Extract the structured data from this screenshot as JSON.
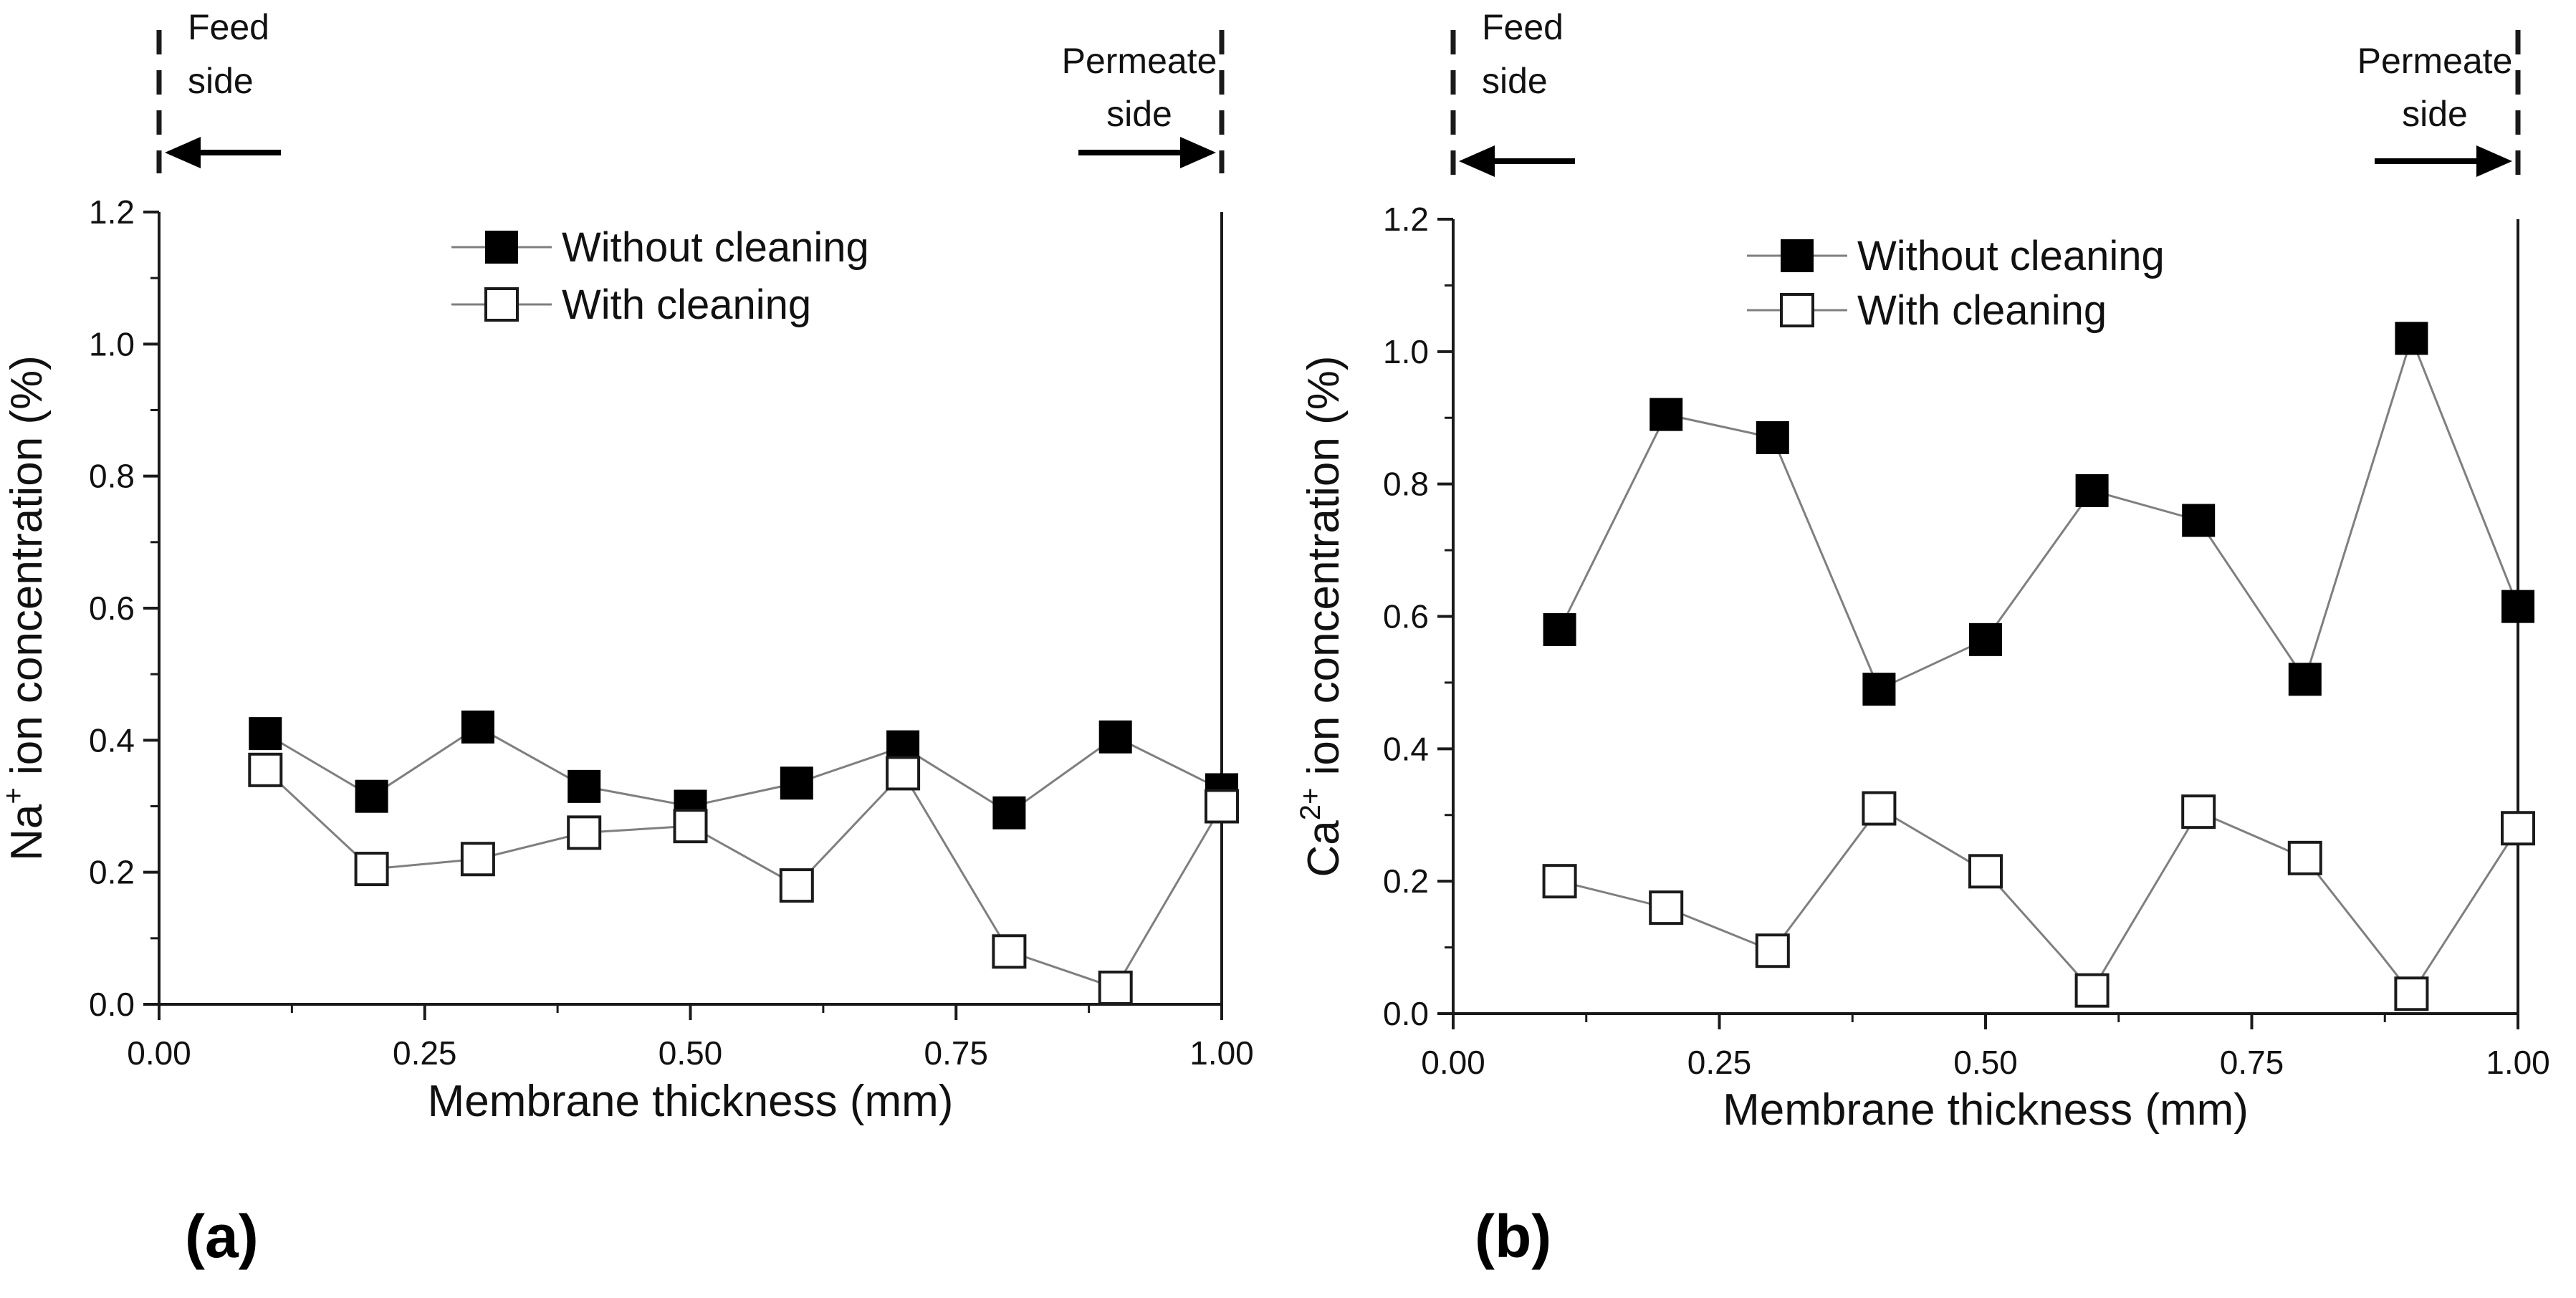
{
  "colors": {
    "axis": "#1a1a1a",
    "line": "#7f7f7f",
    "filled_marker": "#000000",
    "open_marker_fill": "#ffffff",
    "open_marker_stroke": "#1a1a1a"
  },
  "chart_data": [
    {
      "type": "line",
      "panel_label": "(a)",
      "xlabel": "Membrane thickness (mm)",
      "ylabel_prefix": "Na",
      "ylabel_sup": "+",
      "ylabel_suffix": " ion concentration (%)",
      "xlim": [
        0,
        1
      ],
      "ylim": [
        0,
        1.2
      ],
      "xticks": [
        0,
        0.25,
        0.5,
        0.75,
        1.0
      ],
      "xtick_labels": [
        "0.00",
        "0.25",
        "0.50",
        "0.75",
        "1.00"
      ],
      "yticks": [
        0,
        0.2,
        0.4,
        0.6,
        0.8,
        1.0,
        1.2
      ],
      "ytick_labels": [
        "0.0",
        "0.2",
        "0.4",
        "0.6",
        "0.8",
        "1.0",
        "1.2"
      ],
      "feed_label": [
        "Feed",
        "side"
      ],
      "permeate_label": [
        "Permeate",
        "side"
      ],
      "legend_position": "top-center",
      "x": [
        0.1,
        0.2,
        0.3,
        0.4,
        0.5,
        0.6,
        0.7,
        0.8,
        0.9,
        1.0
      ],
      "series": [
        {
          "name": "Without cleaning",
          "marker": "filled-square",
          "values": [
            0.41,
            0.315,
            0.42,
            0.33,
            0.3,
            0.335,
            0.39,
            0.29,
            0.405,
            0.325
          ]
        },
        {
          "name": "With cleaning",
          "marker": "open-square",
          "values": [
            0.355,
            0.205,
            0.22,
            0.26,
            0.27,
            0.18,
            0.35,
            0.08,
            0.025,
            0.3
          ]
        }
      ]
    },
    {
      "type": "line",
      "panel_label": "(b)",
      "xlabel": "Membrane thickness (mm)",
      "ylabel_prefix": "Ca",
      "ylabel_sup": "2+",
      "ylabel_suffix": " ion concentration (%)",
      "xlim": [
        0,
        1
      ],
      "ylim": [
        0,
        1.2
      ],
      "xticks": [
        0,
        0.25,
        0.5,
        0.75,
        1.0
      ],
      "xtick_labels": [
        "0.00",
        "0.25",
        "0.50",
        "0.75",
        "1.00"
      ],
      "yticks": [
        0,
        0.2,
        0.4,
        0.6,
        0.8,
        1.0,
        1.2
      ],
      "ytick_labels": [
        "0.0",
        "0.2",
        "0.4",
        "0.6",
        "0.8",
        "1.0",
        "1.2"
      ],
      "feed_label": [
        "Feed",
        "side"
      ],
      "permeate_label": [
        "Permeate",
        "side"
      ],
      "legend_position": "top-center",
      "x": [
        0.1,
        0.2,
        0.3,
        0.4,
        0.5,
        0.6,
        0.7,
        0.8,
        0.9,
        1.0
      ],
      "series": [
        {
          "name": "Without cleaning",
          "marker": "filled-square",
          "values": [
            0.58,
            0.905,
            0.87,
            0.49,
            0.565,
            0.79,
            0.745,
            0.505,
            1.02,
            0.615
          ]
        },
        {
          "name": "With cleaning",
          "marker": "open-square",
          "values": [
            0.2,
            0.16,
            0.095,
            0.31,
            0.215,
            0.035,
            0.305,
            0.235,
            0.03,
            0.28
          ]
        }
      ]
    }
  ]
}
